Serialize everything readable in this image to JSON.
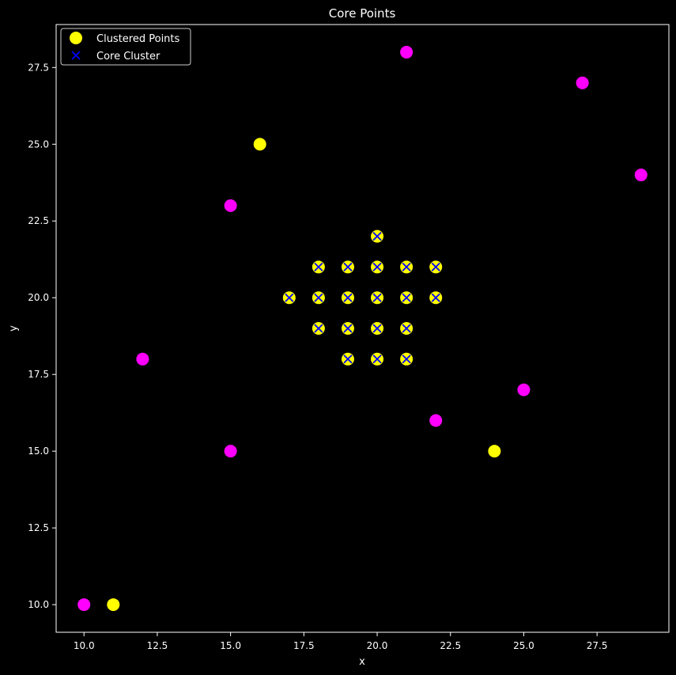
{
  "chart_data": {
    "type": "scatter",
    "title": "Core Points",
    "xlabel": "x",
    "ylabel": "y",
    "xlim": [
      9.05,
      29.95
    ],
    "ylim": [
      9.1,
      28.9
    ],
    "xticks": [
      10.0,
      12.5,
      15.0,
      17.5,
      20.0,
      22.5,
      25.0,
      27.5
    ],
    "yticks": [
      10.0,
      12.5,
      15.0,
      17.5,
      20.0,
      22.5,
      25.0,
      27.5
    ],
    "xtick_labels": [
      "10.0",
      "12.5",
      "15.0",
      "17.5",
      "20.0",
      "22.5",
      "25.0",
      "27.5"
    ],
    "ytick_labels": [
      "10.0",
      "12.5",
      "15.0",
      "17.5",
      "20.0",
      "22.5",
      "25.0",
      "27.5"
    ],
    "grid": false,
    "legend_position": "top-left",
    "background": "#000000",
    "series": [
      {
        "name": "",
        "marker": "circle",
        "color": "#ff00ff",
        "points": [
          [
            10,
            10
          ],
          [
            12,
            18
          ],
          [
            15,
            15
          ],
          [
            15,
            23
          ],
          [
            21,
            28
          ],
          [
            22,
            16
          ],
          [
            25,
            17
          ],
          [
            27,
            27
          ],
          [
            29,
            24
          ]
        ]
      },
      {
        "name": "Clustered Points",
        "marker": "circle",
        "color": "#ffff00",
        "points": [
          [
            11,
            10
          ],
          [
            16,
            25
          ],
          [
            24,
            15
          ],
          [
            17,
            20
          ],
          [
            18,
            19
          ],
          [
            18,
            20
          ],
          [
            18,
            21
          ],
          [
            19,
            18
          ],
          [
            19,
            19
          ],
          [
            19,
            20
          ],
          [
            19,
            21
          ],
          [
            20,
            18
          ],
          [
            20,
            19
          ],
          [
            20,
            20
          ],
          [
            20,
            21
          ],
          [
            20,
            22
          ],
          [
            21,
            18
          ],
          [
            21,
            19
          ],
          [
            21,
            20
          ],
          [
            21,
            21
          ],
          [
            22,
            20
          ],
          [
            22,
            21
          ]
        ]
      },
      {
        "name": "Core Cluster",
        "marker": "x",
        "color": "#0000ff",
        "points": [
          [
            17,
            20
          ],
          [
            18,
            19
          ],
          [
            18,
            20
          ],
          [
            18,
            21
          ],
          [
            19,
            18
          ],
          [
            19,
            19
          ],
          [
            19,
            20
          ],
          [
            19,
            21
          ],
          [
            20,
            18
          ],
          [
            20,
            19
          ],
          [
            20,
            20
          ],
          [
            20,
            21
          ],
          [
            20,
            22
          ],
          [
            21,
            18
          ],
          [
            21,
            19
          ],
          [
            21,
            20
          ],
          [
            21,
            21
          ],
          [
            22,
            20
          ],
          [
            22,
            21
          ]
        ]
      }
    ],
    "legend": [
      {
        "label": "Clustered Points",
        "marker": "circle",
        "color": "#ffff00"
      },
      {
        "label": "Core Cluster",
        "marker": "x",
        "color": "#0000ff"
      }
    ]
  }
}
